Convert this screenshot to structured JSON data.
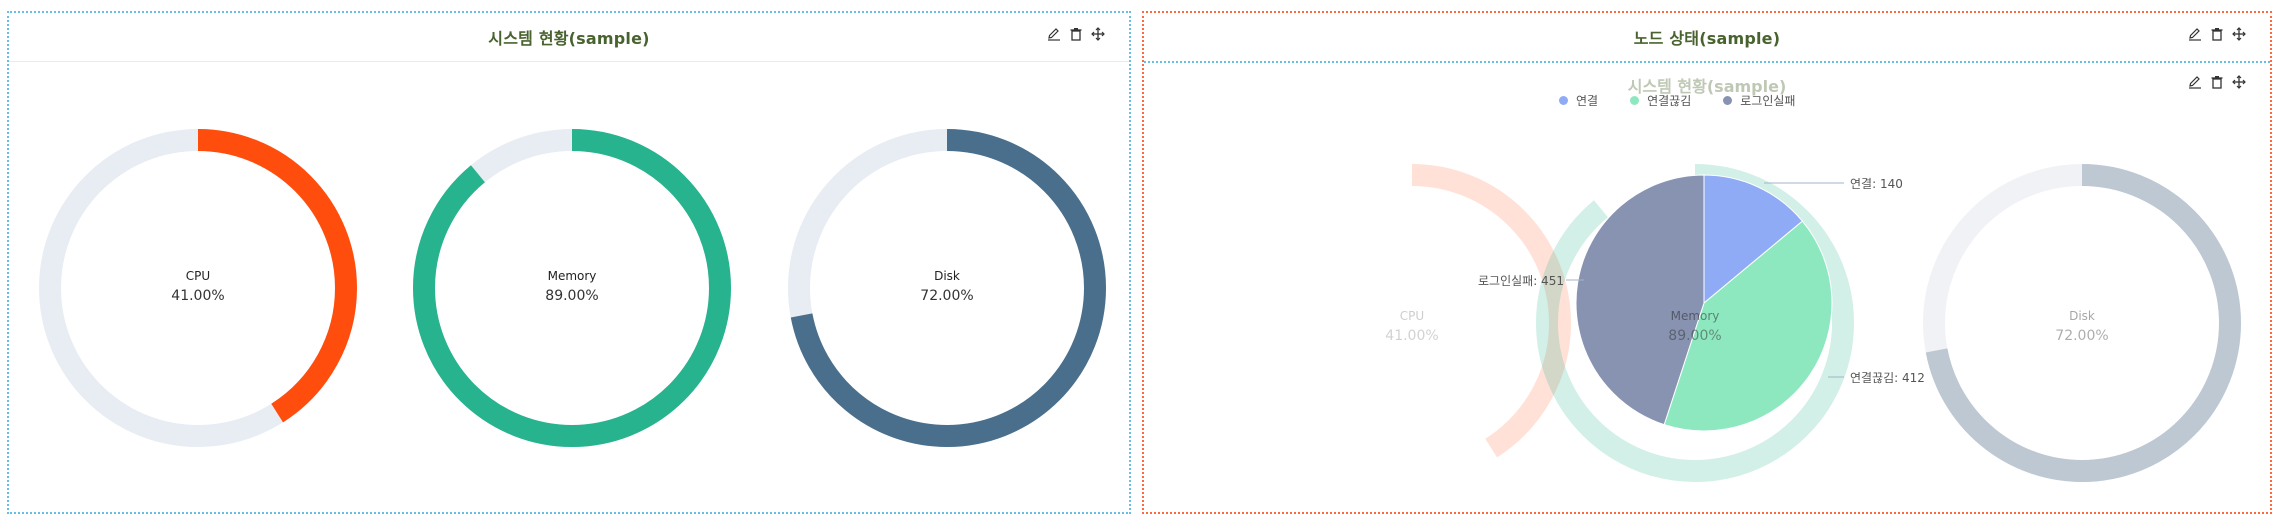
{
  "left_panel": {
    "title": "시스템 현황(sample)",
    "tools": [
      "edit-icon",
      "trash-icon",
      "move-icon"
    ],
    "gauges": [
      {
        "name": "CPU",
        "value_text": "41.00%",
        "value": 41,
        "color": "#ff4d0d",
        "track": "#e8ecf3"
      },
      {
        "name": "Memory",
        "value_text": "89.00%",
        "value": 89,
        "color": "#26b38e",
        "track": "#e8ecf3"
      },
      {
        "name": "Disk",
        "value_text": "72.00%",
        "value": 72,
        "color": "#4a6f8c",
        "track": "#e8ecf3"
      }
    ]
  },
  "right_panel": {
    "title": "노드 상태(sample)",
    "tools": [
      "edit-icon",
      "trash-icon",
      "move-icon"
    ],
    "inner": {
      "title": "시스템 현황(sample)",
      "tools": [
        "edit-icon",
        "trash-icon",
        "move-icon"
      ],
      "gauges": [
        {
          "name": "CPU",
          "value_text": "41.00%",
          "value": 41
        },
        {
          "name": "Memory",
          "value_text": "89.00%",
          "value": 89
        },
        {
          "name": "Disk",
          "value_text": "72.00%",
          "value": 72
        }
      ]
    }
  },
  "chart_data": {
    "type": "pie",
    "series": [
      {
        "name": "연결",
        "value": 140,
        "label": "연결: 140",
        "color": "#8fabf5"
      },
      {
        "name": "연결끊김",
        "value": 412,
        "label": "연결끊김: 412",
        "color": "#8de8c0"
      },
      {
        "name": "로그인실패",
        "value": 451,
        "label": "로그인실패: 451",
        "color": "#8793b1"
      }
    ],
    "legend_position": "top"
  }
}
